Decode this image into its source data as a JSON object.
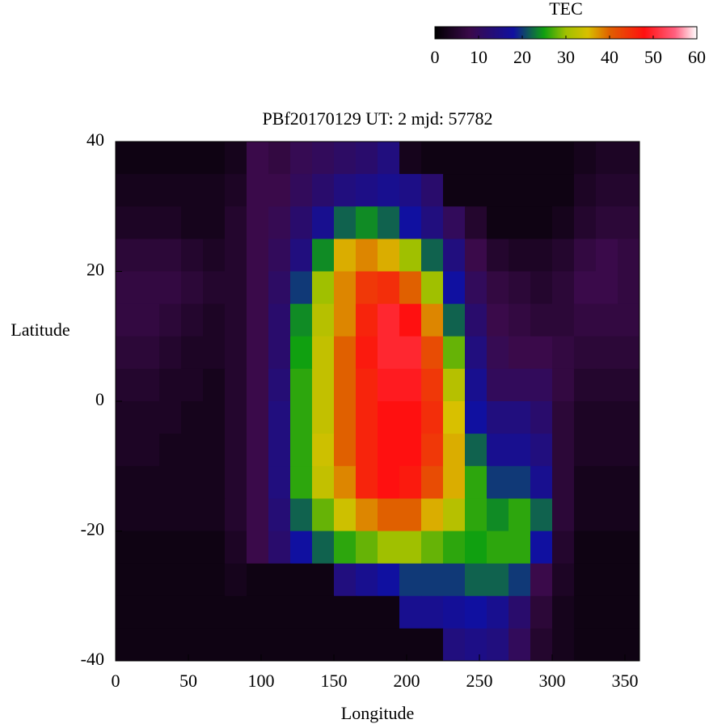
{
  "chart_data": {
    "type": "heatmap",
    "title": "PBf20170129  UT: 2  mjd: 57782",
    "x_label": "Longitude",
    "y_label": "Latitude",
    "colorbar_label": "TEC",
    "xlim": [
      0,
      360
    ],
    "ylim": [
      -40,
      40
    ],
    "xticks": [
      0,
      50,
      100,
      150,
      200,
      250,
      300,
      350
    ],
    "yticks": [
      -40,
      -20,
      0,
      20,
      40
    ],
    "zlim": [
      0,
      60
    ],
    "zticks": [
      0,
      10,
      20,
      30,
      40,
      50,
      60
    ],
    "colorscale": [
      [
        0,
        "#000000"
      ],
      [
        8,
        "#3a0a4a"
      ],
      [
        18,
        "#1010a0"
      ],
      [
        25,
        "#10a010"
      ],
      [
        30,
        "#a0c000"
      ],
      [
        35,
        "#d8c000"
      ],
      [
        40,
        "#e06000"
      ],
      [
        48,
        "#ff1010"
      ],
      [
        55,
        "#ff6080"
      ],
      [
        60,
        "#ffffff"
      ]
    ],
    "x": [
      7.5,
      22.5,
      37.5,
      52.5,
      67.5,
      82.5,
      97.5,
      112.5,
      127.5,
      142.5,
      157.5,
      172.5,
      187.5,
      202.5,
      217.5,
      232.5,
      247.5,
      262.5,
      277.5,
      292.5,
      307.5,
      322.5,
      337.5,
      352.5
    ],
    "y": [
      37.5,
      32.5,
      27.5,
      22.5,
      17.5,
      12.5,
      7.5,
      2.5,
      -2.5,
      -7.5,
      -12.5,
      -17.5,
      -22.5,
      -27.5,
      -32.5,
      -37.5
    ],
    "values": [
      [
        2,
        2,
        2,
        2,
        2,
        3,
        8,
        7,
        9,
        10,
        11,
        12,
        14,
        3,
        2,
        2,
        2,
        2,
        2,
        2,
        2,
        3,
        4,
        4
      ],
      [
        3,
        3,
        3,
        3,
        3,
        4,
        8,
        8,
        10,
        12,
        14,
        15,
        16,
        15,
        12,
        2,
        2,
        2,
        2,
        2,
        2,
        4,
        5,
        5
      ],
      [
        4,
        4,
        4,
        3,
        3,
        5,
        8,
        9,
        12,
        16,
        22,
        24,
        22,
        18,
        14,
        10,
        5,
        2,
        2,
        2,
        3,
        5,
        6,
        6
      ],
      [
        6,
        6,
        6,
        5,
        4,
        5,
        8,
        10,
        14,
        24,
        36,
        38,
        36,
        30,
        22,
        14,
        8,
        5,
        4,
        4,
        5,
        7,
        8,
        7
      ],
      [
        7,
        7,
        7,
        6,
        5,
        5,
        8,
        11,
        20,
        30,
        38,
        44,
        45,
        40,
        30,
        18,
        10,
        7,
        6,
        5,
        6,
        8,
        8,
        7
      ],
      [
        7,
        7,
        6,
        5,
        4,
        5,
        8,
        12,
        24,
        32,
        38,
        46,
        50,
        48,
        38,
        22,
        12,
        8,
        7,
        6,
        6,
        7,
        7,
        7
      ],
      [
        6,
        6,
        5,
        4,
        4,
        5,
        8,
        12,
        25,
        33,
        40,
        47,
        50,
        50,
        42,
        28,
        14,
        9,
        8,
        8,
        7,
        6,
        6,
        6
      ],
      [
        5,
        5,
        4,
        4,
        3,
        5,
        8,
        13,
        26,
        33,
        40,
        46,
        49,
        49,
        44,
        32,
        16,
        10,
        10,
        10,
        7,
        5,
        5,
        5
      ],
      [
        4,
        4,
        4,
        3,
        3,
        5,
        8,
        14,
        26,
        33,
        40,
        46,
        48,
        48,
        45,
        35,
        18,
        14,
        14,
        12,
        6,
        4,
        4,
        4
      ],
      [
        4,
        4,
        3,
        3,
        3,
        5,
        8,
        14,
        26,
        34,
        40,
        46,
        48,
        48,
        44,
        36,
        22,
        16,
        16,
        14,
        6,
        4,
        4,
        4
      ],
      [
        3,
        3,
        3,
        3,
        3,
        5,
        8,
        14,
        26,
        33,
        38,
        46,
        48,
        47,
        42,
        36,
        26,
        20,
        20,
        16,
        6,
        3,
        3,
        3
      ],
      [
        3,
        3,
        3,
        3,
        3,
        5,
        8,
        13,
        22,
        28,
        34,
        38,
        40,
        40,
        36,
        32,
        26,
        24,
        26,
        22,
        6,
        3,
        3,
        3
      ],
      [
        2,
        2,
        2,
        2,
        2,
        4,
        8,
        12,
        18,
        22,
        26,
        28,
        30,
        30,
        28,
        26,
        25,
        26,
        26,
        18,
        5,
        2,
        2,
        2
      ],
      [
        2,
        2,
        2,
        2,
        2,
        3,
        2,
        2,
        2,
        2,
        14,
        16,
        18,
        20,
        20,
        20,
        22,
        22,
        20,
        8,
        4,
        2,
        2,
        2
      ],
      [
        2,
        2,
        2,
        2,
        2,
        2,
        2,
        2,
        2,
        2,
        2,
        2,
        2,
        16,
        16,
        17,
        18,
        16,
        12,
        6,
        3,
        2,
        2,
        2
      ],
      [
        2,
        2,
        2,
        2,
        2,
        2,
        2,
        2,
        2,
        2,
        2,
        2,
        2,
        2,
        2,
        14,
        15,
        14,
        10,
        5,
        3,
        2,
        2,
        2
      ]
    ]
  }
}
